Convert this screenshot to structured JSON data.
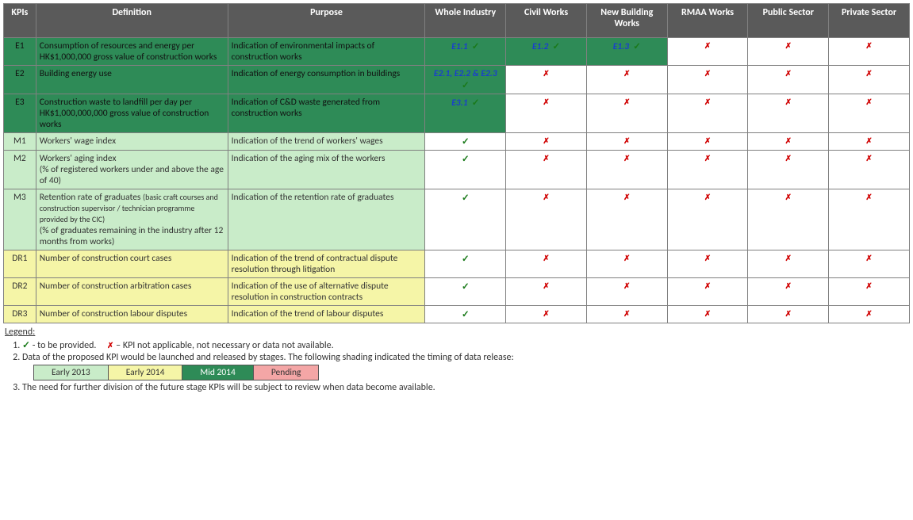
{
  "headers": {
    "kpis": "KPIs",
    "definition": "Definition",
    "purpose": "Purpose",
    "whole_industry": "Whole Industry",
    "civil_works": "Civil Works",
    "new_building_works": "New Building Works",
    "rmaa_works": "RMAA Works",
    "public_sector": "Public Sector",
    "private_sector": "Private Sector"
  },
  "symbols": {
    "tick": "✓",
    "cross": "✗"
  },
  "shades": {
    "green_dark": "#2e8b57",
    "green_light": "#c9ecc9",
    "yellow": "#f5f5a7",
    "pending": "#f4a6a6",
    "header_bg": "#5a5a5a"
  },
  "rows": [
    {
      "code": "E1",
      "shade": "green-dark",
      "definition": "Consumption of resources and energy per HK$1,000,000 gross value of construction works",
      "purpose": "Indication of environmental impacts of construction works",
      "segments": {
        "whole_industry": {
          "ref": "E1.1",
          "tick": true,
          "shade": "green-dark"
        },
        "civil_works": {
          "ref": "E1.2",
          "tick": true,
          "shade": "green-dark"
        },
        "new_building": {
          "ref": "E1.3",
          "tick": true,
          "shade": "green-dark"
        },
        "rmaa": {
          "cross": true
        },
        "public": {
          "cross": true
        },
        "private": {
          "cross": true
        }
      }
    },
    {
      "code": "E2",
      "shade": "green-dark",
      "definition": "Building energy use",
      "purpose": "Indication of energy consumption in buildings",
      "segments": {
        "whole_industry": {
          "ref": "E2.1, E2.2 & E2.3",
          "tick": true,
          "shade": "green-dark"
        },
        "civil_works": {
          "cross": true
        },
        "new_building": {
          "cross": true
        },
        "rmaa": {
          "cross": true
        },
        "public": {
          "cross": true
        },
        "private": {
          "cross": true
        }
      }
    },
    {
      "code": "E3",
      "shade": "green-dark",
      "definition": "Construction waste to landfill per day per HK$1,000,000,000 gross value of construction works",
      "purpose": "Indication of C&D waste generated from construction works",
      "segments": {
        "whole_industry": {
          "ref": "E3.1",
          "tick": true,
          "shade": "green-dark"
        },
        "civil_works": {
          "cross": true
        },
        "new_building": {
          "cross": true
        },
        "rmaa": {
          "cross": true
        },
        "public": {
          "cross": true
        },
        "private": {
          "cross": true
        }
      }
    },
    {
      "code": "M1",
      "shade": "green-light",
      "definition": "Workers' wage index",
      "purpose": "Indication of the trend of workers' wages",
      "segments": {
        "whole_industry": {
          "tick": true
        },
        "civil_works": {
          "cross": true
        },
        "new_building": {
          "cross": true
        },
        "rmaa": {
          "cross": true
        },
        "public": {
          "cross": true
        },
        "private": {
          "cross": true
        }
      }
    },
    {
      "code": "M2",
      "shade": "green-light",
      "definition": "Workers' aging index\n(% of registered workers under and above the age of 40)",
      "purpose": "Indication of the aging mix of the workers",
      "segments": {
        "whole_industry": {
          "tick": true
        },
        "civil_works": {
          "cross": true
        },
        "new_building": {
          "cross": true
        },
        "rmaa": {
          "cross": true
        },
        "public": {
          "cross": true
        },
        "private": {
          "cross": true
        }
      }
    },
    {
      "code": "M3",
      "shade": "green-light",
      "definition_html": "Retention rate of graduates <span class='small'>(basic craft courses and construction supervisor / technician programme provided by the CIC)</span><br>(% of graduates remaining in the industry after 12 months from works)",
      "purpose": "Indication of the retention rate of graduates",
      "segments": {
        "whole_industry": {
          "tick": true
        },
        "civil_works": {
          "cross": true
        },
        "new_building": {
          "cross": true
        },
        "rmaa": {
          "cross": true
        },
        "public": {
          "cross": true
        },
        "private": {
          "cross": true
        }
      }
    },
    {
      "code": "DR1",
      "shade": "yellow",
      "definition": "Number of construction court cases",
      "purpose": "Indication of the trend of contractual dispute resolution through litigation",
      "segments": {
        "whole_industry": {
          "tick": true
        },
        "civil_works": {
          "cross": true
        },
        "new_building": {
          "cross": true
        },
        "rmaa": {
          "cross": true
        },
        "public": {
          "cross": true
        },
        "private": {
          "cross": true
        }
      }
    },
    {
      "code": "DR2",
      "shade": "yellow",
      "definition": "Number of construction arbitration cases",
      "purpose": "Indication of the use of alternative dispute resolution in construction contracts",
      "segments": {
        "whole_industry": {
          "tick": true
        },
        "civil_works": {
          "cross": true
        },
        "new_building": {
          "cross": true
        },
        "rmaa": {
          "cross": true
        },
        "public": {
          "cross": true
        },
        "private": {
          "cross": true
        }
      }
    },
    {
      "code": "DR3",
      "shade": "yellow",
      "definition": "Number of construction labour disputes",
      "purpose": "Indication of the trend of labour disputes",
      "segments": {
        "whole_industry": {
          "tick": true
        },
        "civil_works": {
          "cross": true
        },
        "new_building": {
          "cross": true
        },
        "rmaa": {
          "cross": true
        },
        "public": {
          "cross": true
        },
        "private": {
          "cross": true
        }
      }
    }
  ],
  "legend": {
    "title": "Legend:",
    "item1_tick": "✓ - to be provided.",
    "item1_cross": "✗ – KPI not applicable, not necessary or data not available.",
    "item2": "Data of the proposed KPI would be launched and released by stages. The following shading indicated the timing of data release:",
    "shades": {
      "early2013": "Early 2013",
      "early2014": "Early 2014",
      "mid2014": "Mid 2014",
      "pending": "Pending"
    },
    "item3": "The need for further division of the future stage KPIs will be subject to review when data become available."
  }
}
